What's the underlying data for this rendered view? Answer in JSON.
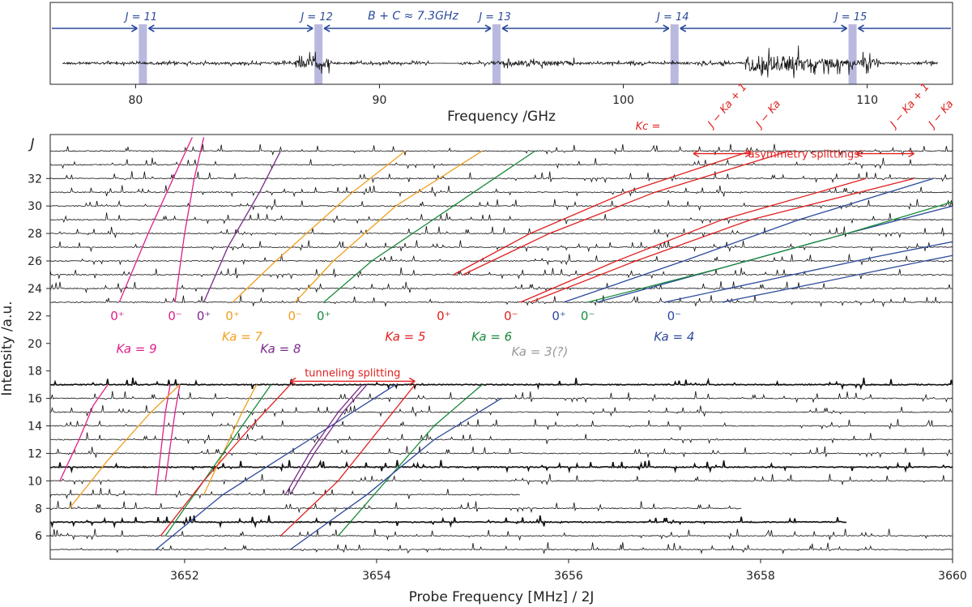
{
  "chart_data": [
    {
      "type": "line",
      "title": "",
      "xlabel": "Frequency /GHz",
      "ylabel": "",
      "xlim": [
        76.5,
        113.5
      ],
      "xticks": [
        80,
        90,
        100,
        110
      ],
      "grid": false,
      "spacing_label": "B + C ≈ 7.3GHz",
      "j_markers": [
        {
          "label": "J = 11",
          "x": 80.3
        },
        {
          "label": "J = 12",
          "x": 87.5
        },
        {
          "label": "J = 13",
          "x": 94.8
        },
        {
          "label": "J = 14",
          "x": 102.1
        },
        {
          "label": "J = 15",
          "x": 109.4
        }
      ],
      "colors": {
        "arrow": "#2c4a9a",
        "band": "#b9b9e0",
        "trace": "#111111"
      }
    },
    {
      "type": "line",
      "title": "",
      "xlabel": "Probe Frequency [MHz] / 2J",
      "ylabel": "Intensity /a.u.",
      "xlim": [
        3650.6,
        3660
      ],
      "ylim": [
        4.3,
        35.2
      ],
      "xticks": [
        3652,
        3654,
        3656,
        3658,
        3660
      ],
      "yticks": [
        6,
        8,
        10,
        12,
        14,
        16,
        18,
        20,
        22,
        24,
        26,
        28,
        30,
        32
      ],
      "y_axis_symbol": "J",
      "grid": false,
      "spectra_j_values": [
        5,
        6,
        7,
        8,
        9,
        10,
        11,
        12,
        13,
        14,
        15,
        16,
        17,
        23,
        24,
        25,
        26,
        27,
        28,
        29,
        30,
        31,
        32,
        33,
        34
      ],
      "spectra_x_end": {
        "5": 3660,
        "6": 3660,
        "7": 3658.9,
        "8": 3657.8,
        "9": 3655.5,
        "10": 3660,
        "11": 3660,
        "12": 3660,
        "13": 3660,
        "14": 3660,
        "15": 3660,
        "16": 3660,
        "17": 3660
      },
      "state_labels": [
        {
          "text": "0⁺",
          "x": 3651.3,
          "y": 22.0,
          "color": "#e0208a"
        },
        {
          "text": "0⁻",
          "x": 3651.9,
          "y": 22.0,
          "color": "#e0208a"
        },
        {
          "text": "0⁺",
          "x": 3652.2,
          "y": 22.0,
          "color": "#7a2a8a"
        },
        {
          "text": "0⁺",
          "x": 3652.5,
          "y": 22.0,
          "color": "#f0a020"
        },
        {
          "text": "0⁻",
          "x": 3653.15,
          "y": 22.0,
          "color": "#f0a020"
        },
        {
          "text": "0⁺",
          "x": 3653.45,
          "y": 22.0,
          "color": "#1a8a3a"
        },
        {
          "text": "0⁺",
          "x": 3654.7,
          "y": 22.0,
          "color": "#e02020"
        },
        {
          "text": "0⁻",
          "x": 3655.4,
          "y": 22.0,
          "color": "#e02020"
        },
        {
          "text": "0⁺",
          "x": 3655.9,
          "y": 22.0,
          "color": "#2c4a9a"
        },
        {
          "text": "0⁻",
          "x": 3656.2,
          "y": 22.0,
          "color": "#1a8a3a"
        },
        {
          "text": "0⁻",
          "x": 3657.1,
          "y": 22.0,
          "color": "#2c4a9a"
        }
      ],
      "ka_labels": [
        {
          "text": "Ka = 9",
          "x": 3651.5,
          "y": 19.6,
          "color": "#e0208a"
        },
        {
          "text": "Ka = 7",
          "x": 3652.6,
          "y": 20.5,
          "color": "#f0a020"
        },
        {
          "text": "Ka = 8",
          "x": 3653.0,
          "y": 19.6,
          "color": "#7a2a8a"
        },
        {
          "text": "Ka = 5",
          "x": 3654.3,
          "y": 20.5,
          "color": "#e02020"
        },
        {
          "text": "Ka = 6",
          "x": 3655.2,
          "y": 20.5,
          "color": "#1a8a3a"
        },
        {
          "text": "Ka = 3(?)",
          "x": 3655.7,
          "y": 19.4,
          "color": "#999999"
        },
        {
          "text": "Ka = 4",
          "x": 3657.1,
          "y": 20.5,
          "color": "#2c4a9a"
        }
      ],
      "tunneling_splitting": {
        "text": "tunneling splitting",
        "x1": 3653.1,
        "x2": 3654.4,
        "y": 17.6
      },
      "asymmetry_splittings": {
        "text": "asymmetry splittings",
        "x1a": 3657.3,
        "x2a": 3657.9,
        "x1b": 3659.0,
        "x2b": 3659.6,
        "y": 34.4
      },
      "kc_label": "Kc =",
      "kc_terms": [
        {
          "text": "J − Ka + 1",
          "x": 3657.5
        },
        {
          "text": "J − Ka",
          "x": 3658.0
        },
        {
          "text": "J − Ka + 1",
          "x": 3659.4
        },
        {
          "text": "J − Ka",
          "x": 3659.8
        }
      ],
      "series": [
        {
          "color": "#e0208a",
          "x": [
            3651.32,
            3651.62,
            3651.88,
            3652.08
          ],
          "y": [
            23,
            28,
            32,
            35
          ]
        },
        {
          "color": "#e0208a",
          "x": [
            3651.9,
            3652.0,
            3652.1,
            3652.2
          ],
          "y": [
            23,
            28,
            32,
            35
          ]
        },
        {
          "color": "#7a2a8a",
          "x": [
            3652.2,
            3652.45,
            3652.78,
            3653.0
          ],
          "y": [
            23,
            27,
            31,
            34
          ]
        },
        {
          "color": "#f0a020",
          "x": [
            3652.5,
            3652.95,
            3653.75,
            3654.3
          ],
          "y": [
            23,
            26,
            31,
            34
          ]
        },
        {
          "color": "#f0a020",
          "x": [
            3653.15,
            3653.55,
            3654.2,
            3655.1
          ],
          "y": [
            23,
            26,
            30,
            34
          ]
        },
        {
          "color": "#1a8a3a",
          "x": [
            3653.45,
            3653.95,
            3654.8,
            3655.65
          ],
          "y": [
            23,
            26,
            30,
            34
          ]
        },
        {
          "color": "#e02020",
          "x": [
            3654.8,
            3655.6,
            3656.6,
            3657.9
          ],
          "y": [
            25,
            28,
            31,
            34
          ]
        },
        {
          "color": "#e02020",
          "x": [
            3654.9,
            3655.8,
            3656.9,
            3658.3
          ],
          "y": [
            25,
            28,
            31,
            34
          ]
        },
        {
          "color": "#e02020",
          "x": [
            3655.5,
            3656.5,
            3657.6,
            3659.1
          ],
          "y": [
            23,
            26,
            29,
            32
          ]
        },
        {
          "color": "#e02020",
          "x": [
            3655.6,
            3656.7,
            3657.9,
            3659.6
          ],
          "y": [
            23,
            26,
            29,
            32
          ]
        },
        {
          "color": "#2c4a9a",
          "x": [
            3655.95,
            3657.2,
            3658.4,
            3659.8
          ],
          "y": [
            23,
            26,
            29,
            32
          ]
        },
        {
          "color": "#2c4a9a",
          "x": [
            3656.3,
            3657.6,
            3658.9,
            3660
          ],
          "y": [
            23,
            25.5,
            28,
            30
          ]
        },
        {
          "color": "#1a8a3a",
          "x": [
            3656.2,
            3657.6,
            3658.9,
            3660
          ],
          "y": [
            23,
            25.5,
            28,
            30.3
          ]
        },
        {
          "color": "#2c4a9a",
          "x": [
            3657.0,
            3658.2,
            3659.2,
            3660
          ],
          "y": [
            23,
            24.8,
            26.3,
            27.4
          ]
        },
        {
          "color": "#2c4a9a",
          "x": [
            3657.6,
            3658.6,
            3659.5,
            3660
          ],
          "y": [
            23,
            24.4,
            25.7,
            26.4
          ]
        },
        {
          "color": "#e0208a",
          "x": [
            3650.7,
            3650.9,
            3651.05,
            3651.2
          ],
          "y": [
            10,
            13,
            15.5,
            17
          ]
        },
        {
          "color": "#e0208a",
          "x": [
            3651.7,
            3651.75,
            3651.8,
            3651.85
          ],
          "y": [
            9,
            12,
            15,
            17
          ]
        },
        {
          "color": "#e0208a",
          "x": [
            3651.8,
            3651.85,
            3651.9,
            3651.95
          ],
          "y": [
            10,
            12.5,
            15,
            17
          ]
        },
        {
          "color": "#f0a020",
          "x": [
            3650.8,
            3651.2,
            3651.65,
            3651.95
          ],
          "y": [
            8,
            11.5,
            15,
            17
          ]
        },
        {
          "color": "#f0a020",
          "x": [
            3652.2,
            3652.4,
            3652.6,
            3652.75
          ],
          "y": [
            9,
            12,
            15,
            17
          ]
        },
        {
          "color": "#1a8a3a",
          "x": [
            3651.8,
            3652.2,
            3652.6,
            3652.9
          ],
          "y": [
            6,
            10,
            14,
            17
          ]
        },
        {
          "color": "#e02020",
          "x": [
            3651.75,
            3652.2,
            3652.7,
            3653.1
          ],
          "y": [
            6,
            10,
            14,
            17
          ]
        },
        {
          "color": "#2c4a9a",
          "x": [
            3651.7,
            3652.4,
            3653.3,
            3654.2
          ],
          "y": [
            5,
            9,
            13,
            17
          ]
        },
        {
          "color": "#7a2a8a",
          "x": [
            3653.05,
            3653.3,
            3653.6,
            3653.85
          ],
          "y": [
            9,
            12,
            15,
            17
          ]
        },
        {
          "color": "#7a2a8a",
          "x": [
            3653.1,
            3653.35,
            3653.65,
            3653.9
          ],
          "y": [
            9,
            12,
            15,
            17
          ]
        },
        {
          "color": "#e02020",
          "x": [
            3653.0,
            3653.6,
            3654.0,
            3654.4
          ],
          "y": [
            6,
            10,
            13.5,
            17
          ]
        },
        {
          "color": "#1a8a3a",
          "x": [
            3653.6,
            3654.1,
            3654.6,
            3655.1
          ],
          "y": [
            6,
            10,
            14,
            17
          ]
        },
        {
          "color": "#2c4a9a",
          "x": [
            3653.1,
            3653.9,
            3654.6,
            3655.3
          ],
          "y": [
            5,
            9,
            13,
            16
          ]
        }
      ]
    }
  ]
}
